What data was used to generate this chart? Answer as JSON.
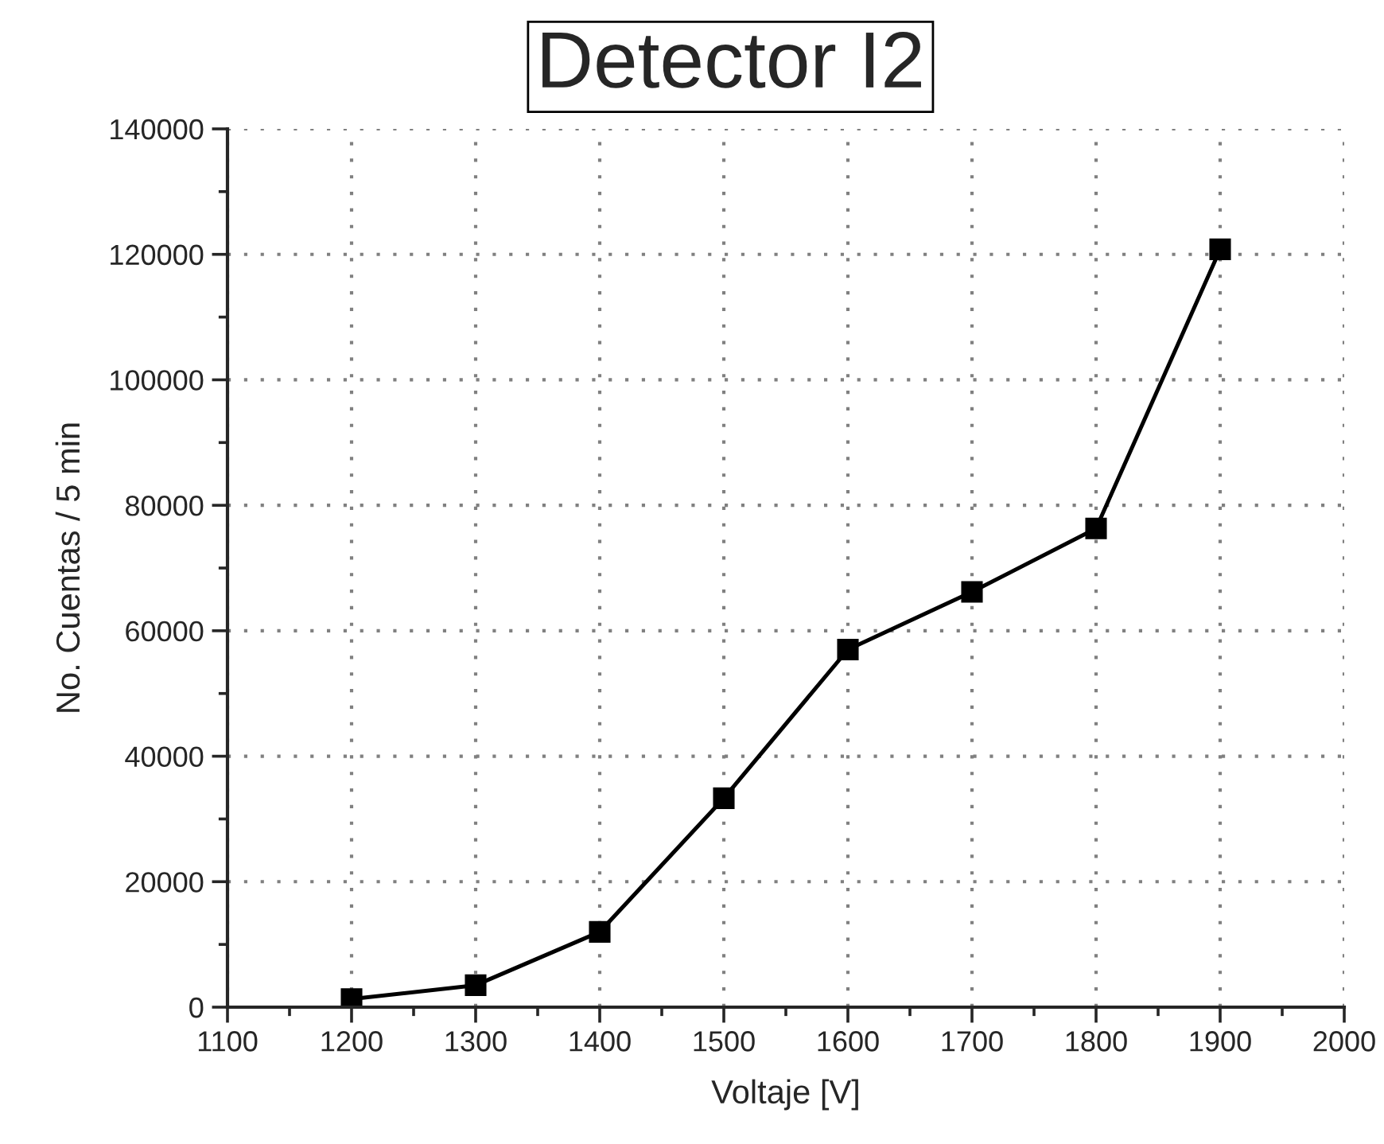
{
  "chart_data": {
    "type": "line",
    "title": "Detector I2",
    "xlabel": "Voltaje [V]",
    "ylabel": "No. Cuentas / 5 min",
    "x": [
      1200,
      1300,
      1400,
      1500,
      1600,
      1700,
      1800,
      1900
    ],
    "series": [
      {
        "color": "#000000",
        "values": [
          1300,
          3500,
          12000,
          33300,
          57000,
          66200,
          76300,
          120800
        ]
      }
    ],
    "xlim": [
      1100,
      2000
    ],
    "xticks": [
      1100,
      1200,
      1300,
      1400,
      1500,
      1600,
      1700,
      1800,
      1900,
      2000
    ],
    "ylim": [
      0,
      140000
    ],
    "yticks": [
      0,
      20000,
      40000,
      60000,
      80000,
      100000,
      120000,
      140000
    ],
    "grid": true,
    "marker": "square",
    "line_style": "solid"
  }
}
